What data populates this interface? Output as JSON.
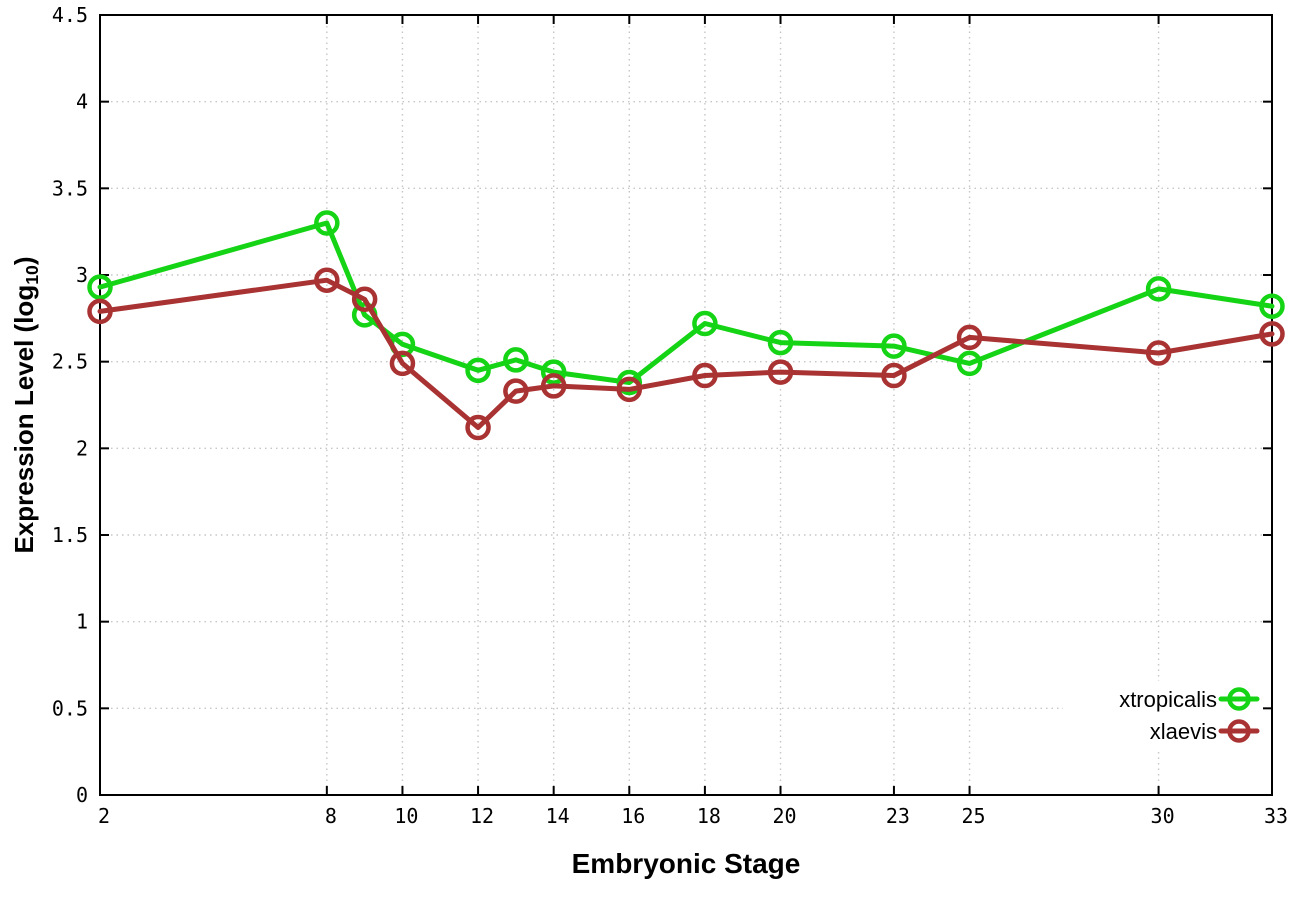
{
  "figure": {
    "background": "#ffffff",
    "border_color": "#000000",
    "grid_color": "#c6c6c6",
    "text_color": "#000000"
  },
  "axes": {
    "xlabel": "Embryonic Stage",
    "ylabel_prefix": "Expression Level (log",
    "ylabel_subscript": "10",
    "ylabel_suffix": ")"
  },
  "chart_data": {
    "type": "line",
    "title": "",
    "xlabel": "Embryonic Stage",
    "ylabel": "Expression Level (log10)",
    "x": [
      2,
      8,
      9,
      10,
      12,
      13,
      14,
      16,
      18,
      20,
      23,
      25,
      30,
      33
    ],
    "series": [
      {
        "name": "xtropicalis",
        "color": "#15d415",
        "values": [
          2.93,
          3.3,
          2.77,
          2.6,
          2.45,
          2.51,
          2.44,
          2.38,
          2.72,
          2.61,
          2.59,
          2.49,
          2.92,
          2.82
        ]
      },
      {
        "name": "xlaevis",
        "color": "#a93232",
        "values": [
          2.79,
          2.97,
          2.86,
          2.49,
          2.12,
          2.33,
          2.36,
          2.34,
          2.42,
          2.44,
          2.42,
          2.64,
          2.55,
          2.66
        ]
      }
    ],
    "xlim": [
      2,
      33
    ],
    "ylim": [
      0,
      4.5
    ],
    "x_tick_values": [
      2,
      8,
      10,
      12,
      14,
      16,
      18,
      20,
      23,
      25,
      30,
      33
    ],
    "y_tick_values": [
      0,
      0.5,
      1,
      1.5,
      2,
      2.5,
      3,
      3.5,
      4,
      4.5
    ],
    "grid": true,
    "grid_style": "dotted",
    "marker": "open-circle",
    "legend_position": "bottom-right",
    "legend": [
      "xtropicalis",
      "xlaevis"
    ]
  }
}
